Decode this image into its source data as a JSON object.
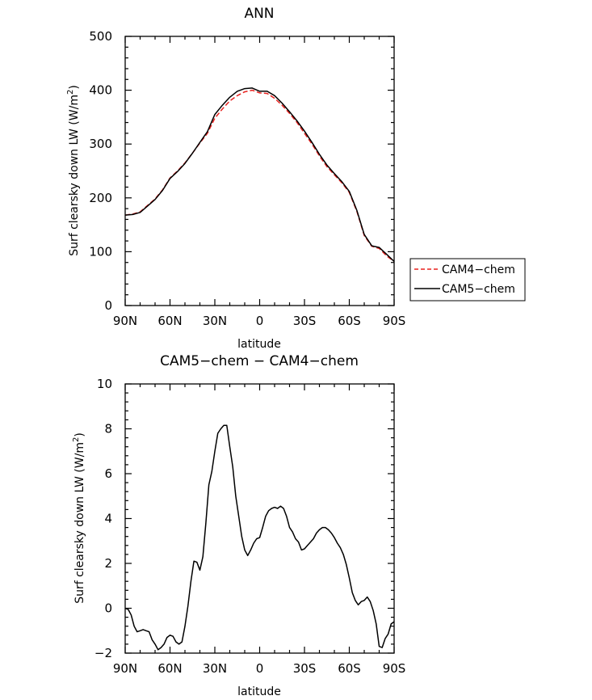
{
  "chart_data": [
    {
      "type": "line",
      "title": "ANN",
      "xlabel": "latitude",
      "ylabel": "Surf clearsky down LW (W/m",
      "ylabel_sup": "2",
      "ylabel_close": ")",
      "xlim": [
        90,
        -90
      ],
      "ylim": [
        0,
        500
      ],
      "xticks": [
        90,
        60,
        30,
        0,
        -30,
        -60,
        -90
      ],
      "xtick_labels": [
        "90N",
        "60N",
        "30N",
        "0",
        "30S",
        "60S",
        "90S"
      ],
      "yticks": [
        0,
        100,
        200,
        300,
        400,
        500
      ],
      "ytick_labels": [
        "0",
        "100",
        "200",
        "300",
        "400",
        "500"
      ],
      "legend": [
        "CAM4−chem",
        "CAM5−chem"
      ],
      "legend_position": "right",
      "series": [
        {
          "name": "CAM4−chem",
          "color": "#e8221f",
          "dash": "dashed",
          "x": [
            90,
            85,
            80,
            75,
            70,
            65,
            60,
            55,
            50,
            45,
            40,
            35,
            30,
            25,
            20,
            15,
            10,
            5,
            0,
            -5,
            -10,
            -15,
            -20,
            -25,
            -30,
            -35,
            -40,
            -45,
            -50,
            -55,
            -60,
            -65,
            -70,
            -75,
            -80,
            -85,
            -90
          ],
          "values": [
            168,
            170,
            174,
            186,
            198,
            215,
            237,
            250,
            265,
            283,
            302,
            320,
            348,
            365,
            380,
            390,
            397,
            400,
            395,
            394,
            385,
            372,
            357,
            340,
            320,
            300,
            278,
            258,
            243,
            228,
            210,
            175,
            130,
            110,
            106,
            92,
            82
          ]
        },
        {
          "name": "CAM5−chem",
          "color": "#000000",
          "dash": "solid",
          "x": [
            90,
            85,
            80,
            75,
            70,
            65,
            60,
            55,
            50,
            45,
            40,
            35,
            30,
            25,
            20,
            15,
            10,
            5,
            0,
            -5,
            -10,
            -15,
            -20,
            -25,
            -30,
            -35,
            -40,
            -45,
            -50,
            -55,
            -60,
            -65,
            -70,
            -75,
            -80,
            -85,
            -90
          ],
          "values": [
            168,
            169,
            173,
            185,
            197,
            214,
            236,
            249,
            264,
            283,
            303,
            323,
            355,
            372,
            387,
            398,
            403,
            404,
            398,
            398,
            390,
            376,
            360,
            343,
            324,
            303,
            281,
            261,
            245,
            230,
            212,
            177,
            132,
            111,
            108,
            95,
            82
          ]
        }
      ]
    },
    {
      "type": "line",
      "title": "CAM5−chem − CAM4−chem",
      "xlabel": "latitude",
      "ylabel": "Surf clearsky down LW (W/m",
      "ylabel_sup": "2",
      "ylabel_close": ")",
      "xlim": [
        90,
        -90
      ],
      "ylim": [
        -2,
        10
      ],
      "xticks": [
        90,
        60,
        30,
        0,
        -30,
        -60,
        -90
      ],
      "xtick_labels": [
        "90N",
        "60N",
        "30N",
        "0",
        "30S",
        "60S",
        "90S"
      ],
      "yticks": [
        -2,
        0,
        2,
        4,
        6,
        8,
        10
      ],
      "ytick_labels": [
        "−2",
        "0",
        "2",
        "4",
        "6",
        "8",
        "10"
      ],
      "series": [
        {
          "name": "CAM5−chem − CAM4−chem",
          "color": "#000000",
          "dash": "solid",
          "x": [
            90,
            88,
            86,
            84,
            82,
            80,
            78,
            76,
            74,
            72,
            70,
            68,
            66,
            64,
            62,
            60,
            58,
            56,
            54,
            52,
            50,
            48,
            46,
            44,
            42,
            40,
            38,
            36,
            34,
            32,
            30,
            28,
            26,
            24,
            22,
            20,
            18,
            16,
            14,
            12,
            10,
            8,
            6,
            4,
            2,
            0,
            -2,
            -4,
            -6,
            -8,
            -10,
            -12,
            -14,
            -16,
            -18,
            -20,
            -22,
            -24,
            -26,
            -28,
            -30,
            -32,
            -34,
            -36,
            -38,
            -40,
            -42,
            -44,
            -46,
            -48,
            -50,
            -52,
            -54,
            -56,
            -58,
            -60,
            -62,
            -64,
            -66,
            -68,
            -70,
            -72,
            -74,
            -76,
            -78,
            -80,
            -82,
            -84,
            -86,
            -88,
            -90
          ],
          "values": [
            0,
            -0.05,
            -0.3,
            -0.8,
            -1.05,
            -1.0,
            -0.95,
            -1.0,
            -1.05,
            -1.4,
            -1.6,
            -1.85,
            -1.75,
            -1.6,
            -1.3,
            -1.2,
            -1.25,
            -1.5,
            -1.6,
            -1.5,
            -0.8,
            0.1,
            1.2,
            2.1,
            2.05,
            1.7,
            2.3,
            3.8,
            5.5,
            6.1,
            7.0,
            7.8,
            8.0,
            8.15,
            8.15,
            7.2,
            6.3,
            5.0,
            4.1,
            3.2,
            2.6,
            2.35,
            2.6,
            2.9,
            3.1,
            3.15,
            3.6,
            4.1,
            4.35,
            4.45,
            4.5,
            4.45,
            4.55,
            4.45,
            4.1,
            3.6,
            3.4,
            3.1,
            2.95,
            2.6,
            2.65,
            2.8,
            2.95,
            3.1,
            3.35,
            3.5,
            3.6,
            3.6,
            3.5,
            3.35,
            3.15,
            2.9,
            2.7,
            2.4,
            1.95,
            1.35,
            0.7,
            0.35,
            0.15,
            0.3,
            0.35,
            0.5,
            0.3,
            -0.1,
            -0.7,
            -1.7,
            -1.75,
            -1.35,
            -1.15,
            -0.7,
            -0.6
          ]
        }
      ]
    }
  ]
}
